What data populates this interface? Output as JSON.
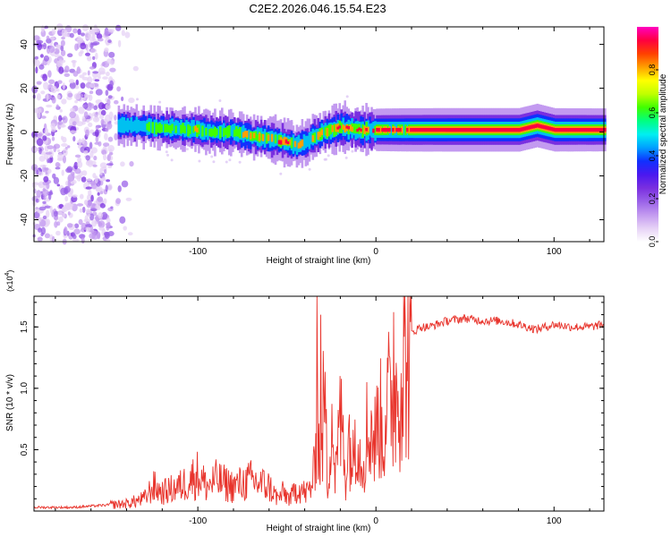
{
  "figure_title": "C2E2.2026.046.15.54.E23",
  "colors": {
    "snr_line": "#e8332b",
    "spectral_scale": [
      "#ffffff",
      "#e6d2f6",
      "#c39af0",
      "#9a62e8",
      "#7a2fe0",
      "#4a18f0",
      "#1030ff",
      "#00a0ff",
      "#00f0f0",
      "#00ff80",
      "#40ff00",
      "#c0ff00",
      "#ffff00",
      "#ffa000",
      "#ff4000",
      "#ff0040",
      "#ff00c0"
    ]
  },
  "chart_data": [
    {
      "type": "heatmap",
      "title": "",
      "xlabel": "Height of straight line (km)",
      "ylabel": "Frequency (Hz)",
      "xlim": [
        -192,
        128
      ],
      "ylim": [
        -50,
        48
      ],
      "xticks": [
        -100,
        0,
        100
      ],
      "yticks": [
        -40,
        -20,
        0,
        20,
        40
      ],
      "colorbar": {
        "label": "Normalized spectral amplitude",
        "range": [
          0,
          1
        ],
        "ticks": [
          "0.0",
          "0.2",
          "0.4",
          "0.6",
          "0.8"
        ]
      },
      "noise_region_x": [
        -192,
        -140
      ],
      "ridge": {
        "description": "center frequency of dominant spectral ridge vs height",
        "x": [
          -190,
          -160,
          -140,
          -120,
          -100,
          -90,
          -80,
          -70,
          -60,
          -50,
          -45,
          -40,
          -35,
          -30,
          -25,
          -20,
          -10,
          0,
          10,
          20,
          40,
          60,
          80,
          90,
          100,
          128
        ],
        "y": [
          3,
          3,
          3,
          2,
          1,
          0,
          0,
          -2,
          -3,
          -5,
          -6,
          -5,
          -2,
          0,
          1,
          2,
          1,
          1,
          1,
          1,
          1,
          1,
          1,
          3,
          1,
          1
        ],
        "strength": [
          0.3,
          0.35,
          0.45,
          0.6,
          0.65,
          0.6,
          0.6,
          0.7,
          0.75,
          0.8,
          0.75,
          0.7,
          0.7,
          0.75,
          0.8,
          0.85,
          0.9,
          0.92,
          0.95,
          0.97,
          0.98,
          0.98,
          0.98,
          0.98,
          0.97,
          0.95
        ]
      }
    },
    {
      "type": "line",
      "title": "",
      "xlabel": "Height of straight line (km)",
      "ylabel": "SNR (10 * v/v)",
      "y_multiplier_label": "(x10",
      "y_multiplier_exponent": "4",
      "y_multiplier_close": ")",
      "xlim": [
        -192,
        128
      ],
      "ylim": [
        0,
        1.75
      ],
      "xticks": [
        -100,
        0,
        100
      ],
      "yticks": [
        0.5,
        1.0,
        1.5
      ],
      "ytick_labels": [
        "0.5",
        "1.0",
        "1.5"
      ],
      "series": [
        {
          "name": "SNR",
          "x": [
            -192,
            -170,
            -150,
            -140,
            -130,
            -125,
            -120,
            -110,
            -100,
            -95,
            -90,
            -80,
            -70,
            -60,
            -55,
            -52,
            -48,
            -44,
            -40,
            -37,
            -35,
            -33,
            -31,
            -29,
            -27,
            -25,
            -23,
            -21,
            -19,
            -17,
            -15,
            -13,
            -11,
            -9,
            -7,
            -5,
            -3,
            -1,
            2,
            4,
            6,
            8,
            10,
            15,
            20,
            25,
            30,
            40,
            50,
            60,
            70,
            80,
            90,
            100,
            110,
            120,
            128
          ],
          "values": [
            0.03,
            0.03,
            0.05,
            0.06,
            0.1,
            0.2,
            0.15,
            0.2,
            0.3,
            0.2,
            0.25,
            0.2,
            0.25,
            0.2,
            0.1,
            0.15,
            0.1,
            0.2,
            0.15,
            0.2,
            0.3,
            0.9,
            0.2,
            1.15,
            0.15,
            1.0,
            0.3,
            0.6,
            0.8,
            0.3,
            0.7,
            0.4,
            0.9,
            0.5,
            0.5,
            0.6,
            0.8,
            0.6,
            0.9,
            0.6,
            1.1,
            0.9,
            1.0,
            1.3,
            1.45,
            1.5,
            1.5,
            1.55,
            1.57,
            1.55,
            1.55,
            1.52,
            1.48,
            1.52,
            1.5,
            1.5,
            1.52
          ],
          "spikes": [
            {
              "x": -33,
              "y": 1.75
            },
            {
              "x": -31,
              "y": 1.6
            },
            {
              "x": -20,
              "y": 1.1
            },
            {
              "x": -5,
              "y": 1.05
            },
            {
              "x": 10,
              "y": 1.62
            }
          ]
        }
      ]
    }
  ]
}
